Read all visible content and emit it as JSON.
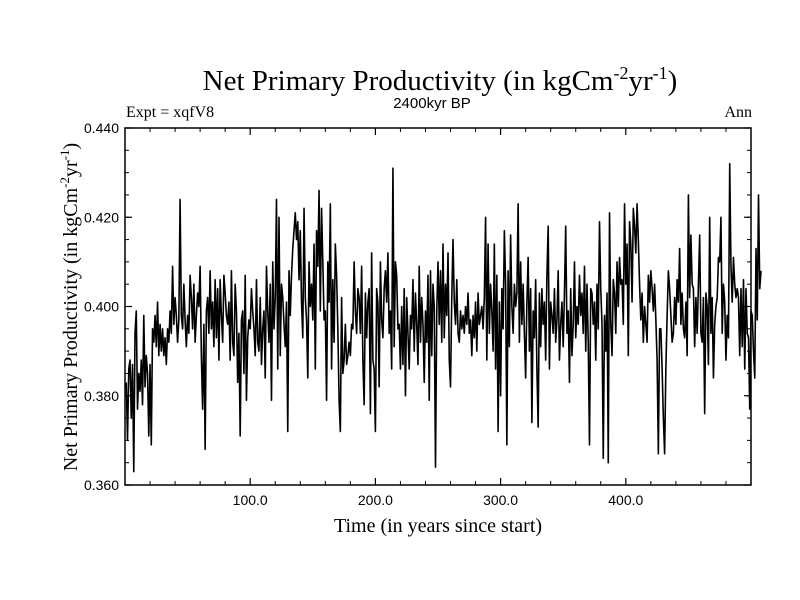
{
  "title": "Net Primary Productivity (in kgCm",
  "title_sup1": "-2",
  "title_mid": "yr",
  "title_sup2": "-1",
  "title_end": ")",
  "subtitle": "2400kyr BP",
  "expt_label": "Expt = xqfV8",
  "period_label": "Ann",
  "chart_data": {
    "type": "line",
    "title": "Net Primary Productivity (in kgCm-2yr-1)",
    "subtitle": "2400kyr BP",
    "xlabel": "Time (in years since start)",
    "ylabel": "Net Primary Productivity (in kgCm-2yr-1)",
    "ylabel_main": "Net Primary Productivity (in kgCm",
    "ylabel_sup1": "-2",
    "ylabel_mid": "yr",
    "ylabel_sup2": "-1",
    "ylabel_end": ")",
    "xlim": [
      0,
      500
    ],
    "ylim": [
      0.36,
      0.44
    ],
    "x_ticks": [
      100,
      200,
      300,
      400
    ],
    "x_tick_labels": [
      "100.0",
      "200.0",
      "300.0",
      "400.0"
    ],
    "y_ticks": [
      0.36,
      0.38,
      0.4,
      0.42,
      0.44
    ],
    "y_tick_labels": [
      "0.360",
      "0.380",
      "0.400",
      "0.420",
      "0.440"
    ],
    "grid": false,
    "series": [
      {
        "name": "Net Primary Productivity",
        "x_start": 1,
        "x_step": 1,
        "values": [
          0.383,
          0.37,
          0.386,
          0.388,
          0.375,
          0.387,
          0.363,
          0.394,
          0.399,
          0.377,
          0.385,
          0.381,
          0.388,
          0.378,
          0.398,
          0.382,
          0.389,
          0.385,
          0.371,
          0.387,
          0.369,
          0.395,
          0.392,
          0.398,
          0.391,
          0.401,
          0.389,
          0.396,
          0.39,
          0.395,
          0.389,
          0.393,
          0.387,
          0.395,
          0.392,
          0.399,
          0.394,
          0.409,
          0.396,
          0.402,
          0.398,
          0.392,
          0.397,
          0.424,
          0.398,
          0.395,
          0.405,
          0.397,
          0.391,
          0.398,
          0.394,
          0.407,
          0.402,
          0.395,
          0.405,
          0.392,
          0.398,
          0.403,
          0.4,
          0.409,
          0.389,
          0.377,
          0.396,
          0.368,
          0.399,
          0.402,
          0.394,
          0.408,
          0.395,
          0.401,
          0.391,
          0.406,
          0.393,
          0.404,
          0.388,
          0.406,
          0.398,
          0.392,
          0.407,
          0.403,
          0.398,
          0.396,
          0.401,
          0.388,
          0.408,
          0.392,
          0.389,
          0.405,
          0.399,
          0.383,
          0.394,
          0.371,
          0.397,
          0.399,
          0.385,
          0.407,
          0.379,
          0.393,
          0.397,
          0.395,
          0.404,
          0.399,
          0.395,
          0.389,
          0.406,
          0.392,
          0.39,
          0.402,
          0.387,
          0.395,
          0.399,
          0.384,
          0.409,
          0.399,
          0.392,
          0.405,
          0.379,
          0.41,
          0.395,
          0.402,
          0.424,
          0.386,
          0.42,
          0.389,
          0.405,
          0.402,
          0.396,
          0.391,
          0.401,
          0.372,
          0.408,
          0.398,
          0.407,
          0.413,
          0.417,
          0.421,
          0.415,
          0.419,
          0.406,
          0.417,
          0.401,
          0.393,
          0.422,
          0.402,
          0.397,
          0.384,
          0.41,
          0.4,
          0.405,
          0.397,
          0.414,
          0.386,
          0.417,
          0.409,
          0.426,
          0.399,
          0.422,
          0.41,
          0.397,
          0.399,
          0.379,
          0.41,
          0.401,
          0.423,
          0.386,
          0.406,
          0.392,
          0.414,
          0.407,
          0.395,
          0.379,
          0.372,
          0.402,
          0.385,
          0.388,
          0.396,
          0.387,
          0.389,
          0.392,
          0.389,
          0.396,
          0.395,
          0.41,
          0.399,
          0.394,
          0.404,
          0.402,
          0.394,
          0.409,
          0.388,
          0.378,
          0.403,
          0.393,
          0.401,
          0.404,
          0.376,
          0.412,
          0.388,
          0.386,
          0.372,
          0.404,
          0.401,
          0.382,
          0.41,
          0.397,
          0.393,
          0.404,
          0.408,
          0.401,
          0.412,
          0.394,
          0.399,
          0.386,
          0.431,
          0.391,
          0.41,
          0.407,
          0.395,
          0.396,
          0.386,
          0.4,
          0.387,
          0.404,
          0.38,
          0.402,
          0.394,
          0.386,
          0.398,
          0.395,
          0.406,
          0.39,
          0.403,
          0.396,
          0.387,
          0.409,
          0.392,
          0.402,
          0.396,
          0.383,
          0.399,
          0.392,
          0.407,
          0.379,
          0.408,
          0.389,
          0.405,
          0.4,
          0.364,
          0.399,
          0.41,
          0.396,
          0.408,
          0.392,
          0.414,
          0.393,
          0.405,
          0.398,
          0.412,
          0.388,
          0.382,
          0.402,
          0.415,
          0.401,
          0.396,
          0.406,
          0.394,
          0.392,
          0.399,
          0.395,
          0.398,
          0.394,
          0.4,
          0.396,
          0.403,
          0.394,
          0.397,
          0.389,
          0.398,
          0.393,
          0.401,
          0.39,
          0.403,
          0.396,
          0.398,
          0.4,
          0.395,
          0.402,
          0.42,
          0.388,
          0.414,
          0.394,
          0.405,
          0.399,
          0.39,
          0.414,
          0.386,
          0.407,
          0.372,
          0.401,
          0.38,
          0.404,
          0.395,
          0.417,
          0.405,
          0.369,
          0.408,
          0.391,
          0.416,
          0.4,
          0.394,
          0.405,
          0.4,
          0.403,
          0.423,
          0.392,
          0.41,
          0.396,
          0.405,
          0.394,
          0.384,
          0.401,
          0.411,
          0.39,
          0.404,
          0.374,
          0.399,
          0.393,
          0.406,
          0.386,
          0.373,
          0.403,
          0.391,
          0.404,
          0.396,
          0.401,
          0.388,
          0.407,
          0.418,
          0.386,
          0.401,
          0.398,
          0.394,
          0.404,
          0.392,
          0.397,
          0.408,
          0.388,
          0.396,
          0.401,
          0.391,
          0.403,
          0.418,
          0.394,
          0.399,
          0.383,
          0.404,
          0.389,
          0.396,
          0.41,
          0.393,
          0.4,
          0.396,
          0.407,
          0.398,
          0.403,
          0.394,
          0.409,
          0.39,
          0.405,
          0.392,
          0.369,
          0.404,
          0.403,
          0.396,
          0.401,
          0.388,
          0.405,
          0.395,
          0.419,
          0.404,
          0.396,
          0.366,
          0.398,
          0.39,
          0.403,
          0.365,
          0.421,
          0.396,
          0.389,
          0.406,
          0.403,
          0.394,
          0.41,
          0.4,
          0.411,
          0.405,
          0.406,
          0.396,
          0.423,
          0.405,
          0.414,
          0.389,
          0.419,
          0.414,
          0.401,
          0.422,
          0.418,
          0.412,
          0.423,
          0.415,
          0.405,
          0.397,
          0.403,
          0.392,
          0.4,
          0.396,
          0.392,
          0.407,
          0.401,
          0.408,
          0.404,
          0.399,
          0.405,
          0.397,
          0.388,
          0.367,
          0.395,
          0.395,
          0.386,
          0.375,
          0.367,
          0.386,
          0.398,
          0.408,
          0.404,
          0.398,
          0.392,
          0.394,
          0.402,
          0.396,
          0.406,
          0.401,
          0.413,
          0.396,
          0.403,
          0.395,
          0.393,
          0.401,
          0.389,
          0.425,
          0.402,
          0.416,
          0.405,
          0.404,
          0.391,
          0.402,
          0.394,
          0.405,
          0.416,
          0.394,
          0.392,
          0.402,
          0.376,
          0.403,
          0.4,
          0.387,
          0.42,
          0.394,
          0.402,
          0.384,
          0.396,
          0.4,
          0.402,
          0.411,
          0.41,
          0.42,
          0.394,
          0.405,
          0.401,
          0.388,
          0.398,
          0.393,
          0.432,
          0.409,
          0.401,
          0.411,
          0.405,
          0.402,
          0.404,
          0.402,
          0.389,
          0.404,
          0.391,
          0.406,
          0.386,
          0.404,
          0.394,
          0.393,
          0.377,
          0.399,
          0.398,
          0.39,
          0.384,
          0.413,
          0.397,
          0.425,
          0.404,
          0.408
        ]
      }
    ]
  }
}
